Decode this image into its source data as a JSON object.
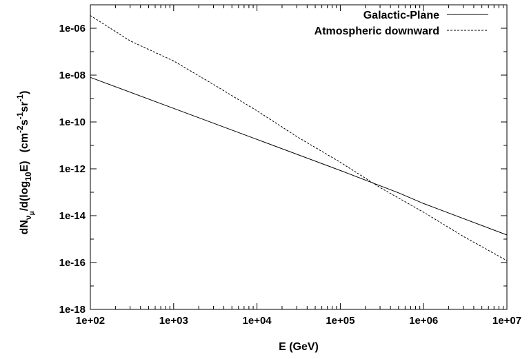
{
  "chart_data": {
    "type": "line",
    "title": "",
    "xlabel": "E (GeV)",
    "ylabel": {
      "prefix": "dN",
      "nu_sub": "ν",
      "mu_sub": "μ",
      "middle": "/d(log",
      "log_sub": "10",
      "suffix": "E)",
      "units_open": "(cm",
      "exp_area": "-2",
      "s": "s",
      "exp_time": "-1",
      "sr": "sr",
      "exp_solid": "-1",
      "units_close": ")"
    },
    "x_scale": "log",
    "y_scale": "log",
    "xlim": [
      100,
      10000000
    ],
    "ylim": [
      1e-18,
      1e-05
    ],
    "x_ticks": [
      {
        "value": 100,
        "label": "1e+02"
      },
      {
        "value": 1000,
        "label": "1e+03"
      },
      {
        "value": 10000,
        "label": "1e+04"
      },
      {
        "value": 100000,
        "label": "1e+05"
      },
      {
        "value": 1000000,
        "label": "1e+06"
      },
      {
        "value": 10000000,
        "label": "1e+07"
      }
    ],
    "y_ticks": [
      {
        "value": 1e-18,
        "label": "1e-18"
      },
      {
        "value": 1e-16,
        "label": "1e-16"
      },
      {
        "value": 1e-14,
        "label": "1e-14"
      },
      {
        "value": 1e-12,
        "label": "1e-12"
      },
      {
        "value": 1e-10,
        "label": "1e-10"
      },
      {
        "value": 1e-08,
        "label": "1e-08"
      },
      {
        "value": 1e-06,
        "label": "1e-06"
      }
    ],
    "grid": false,
    "legend_position": "top-right",
    "series": [
      {
        "name": "Galactic-Plane",
        "style": "solid",
        "color": "#000000",
        "x": [
          100,
          1000,
          10000,
          100000,
          500000,
          1000000,
          10000000
        ],
        "y": [
          8e-09,
          3.8e-10,
          1.8e-11,
          8.5e-13,
          9.5e-14,
          3.3e-14,
          1.5e-15
        ]
      },
      {
        "name": "Atmospheric downward",
        "style": "dashed",
        "color": "#000000",
        "x": [
          100,
          300,
          1000,
          3000,
          10000,
          30000,
          100000,
          300000,
          1000000,
          3000000,
          10000000
        ],
        "y": [
          3.5e-06,
          2.9e-07,
          4e-08,
          4e-09,
          3e-10,
          2.4e-11,
          1.9e-12,
          1.6e-13,
          1.4e-14,
          1.3e-15,
          1.2e-16
        ]
      }
    ]
  }
}
